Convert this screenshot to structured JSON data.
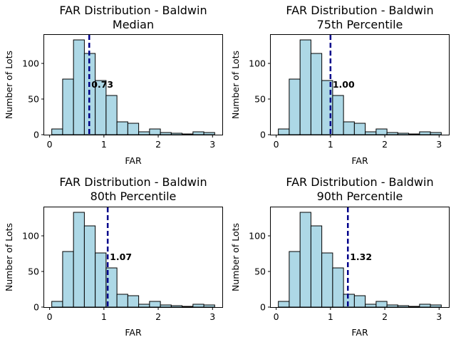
{
  "chart_data": [
    {
      "type": "bar",
      "title": "FAR Distribution - Baldwin",
      "subtitle": "Median",
      "xlabel": "FAR",
      "ylabel": "Number of Lots",
      "bin_edges": [
        0.04,
        0.24,
        0.44,
        0.64,
        0.84,
        1.04,
        1.24,
        1.44,
        1.64,
        1.84,
        2.04,
        2.24,
        2.44,
        2.64,
        2.84,
        3.04
      ],
      "values": [
        8,
        78,
        133,
        114,
        76,
        55,
        18,
        16,
        4,
        8,
        3,
        2,
        1,
        4,
        3
      ],
      "xlim": [
        -0.1,
        3.18
      ],
      "ylim": [
        0,
        140
      ],
      "xticks": [
        "0",
        "1",
        "2",
        "3"
      ],
      "yticks": [
        "0",
        "50",
        "100"
      ],
      "marker_value": 0.73,
      "marker_label": "0.73"
    },
    {
      "type": "bar",
      "title": "FAR Distribution - Baldwin",
      "subtitle": "75th Percentile",
      "xlabel": "FAR",
      "ylabel": "Number of Lots",
      "bin_edges": [
        0.04,
        0.24,
        0.44,
        0.64,
        0.84,
        1.04,
        1.24,
        1.44,
        1.64,
        1.84,
        2.04,
        2.24,
        2.44,
        2.64,
        2.84,
        3.04
      ],
      "values": [
        8,
        78,
        133,
        114,
        76,
        55,
        18,
        16,
        4,
        8,
        3,
        2,
        1,
        4,
        3
      ],
      "xlim": [
        -0.1,
        3.18
      ],
      "ylim": [
        0,
        140
      ],
      "xticks": [
        "0",
        "1",
        "2",
        "3"
      ],
      "yticks": [
        "0",
        "50",
        "100"
      ],
      "marker_value": 1.0,
      "marker_label": "1.00"
    },
    {
      "type": "bar",
      "title": "FAR Distribution - Baldwin",
      "subtitle": "80th Percentile",
      "xlabel": "FAR",
      "ylabel": "Number of Lots",
      "bin_edges": [
        0.04,
        0.24,
        0.44,
        0.64,
        0.84,
        1.04,
        1.24,
        1.44,
        1.64,
        1.84,
        2.04,
        2.24,
        2.44,
        2.64,
        2.84,
        3.04
      ],
      "values": [
        8,
        78,
        133,
        114,
        76,
        55,
        18,
        16,
        4,
        8,
        3,
        2,
        1,
        4,
        3
      ],
      "xlim": [
        -0.1,
        3.18
      ],
      "ylim": [
        0,
        140
      ],
      "xticks": [
        "0",
        "1",
        "2",
        "3"
      ],
      "yticks": [
        "0",
        "50",
        "100"
      ],
      "marker_value": 1.07,
      "marker_label": "1.07"
    },
    {
      "type": "bar",
      "title": "FAR Distribution - Baldwin",
      "subtitle": "90th Percentile",
      "xlabel": "FAR",
      "ylabel": "Number of Lots",
      "bin_edges": [
        0.04,
        0.24,
        0.44,
        0.64,
        0.84,
        1.04,
        1.24,
        1.44,
        1.64,
        1.84,
        2.04,
        2.24,
        2.44,
        2.64,
        2.84,
        3.04
      ],
      "values": [
        8,
        78,
        133,
        114,
        76,
        55,
        18,
        16,
        4,
        8,
        3,
        2,
        1,
        4,
        3
      ],
      "xlim": [
        -0.1,
        3.18
      ],
      "ylim": [
        0,
        140
      ],
      "xticks": [
        "0",
        "1",
        "2",
        "3"
      ],
      "yticks": [
        "0",
        "50",
        "100"
      ],
      "marker_value": 1.32,
      "marker_label": "1.32"
    }
  ]
}
